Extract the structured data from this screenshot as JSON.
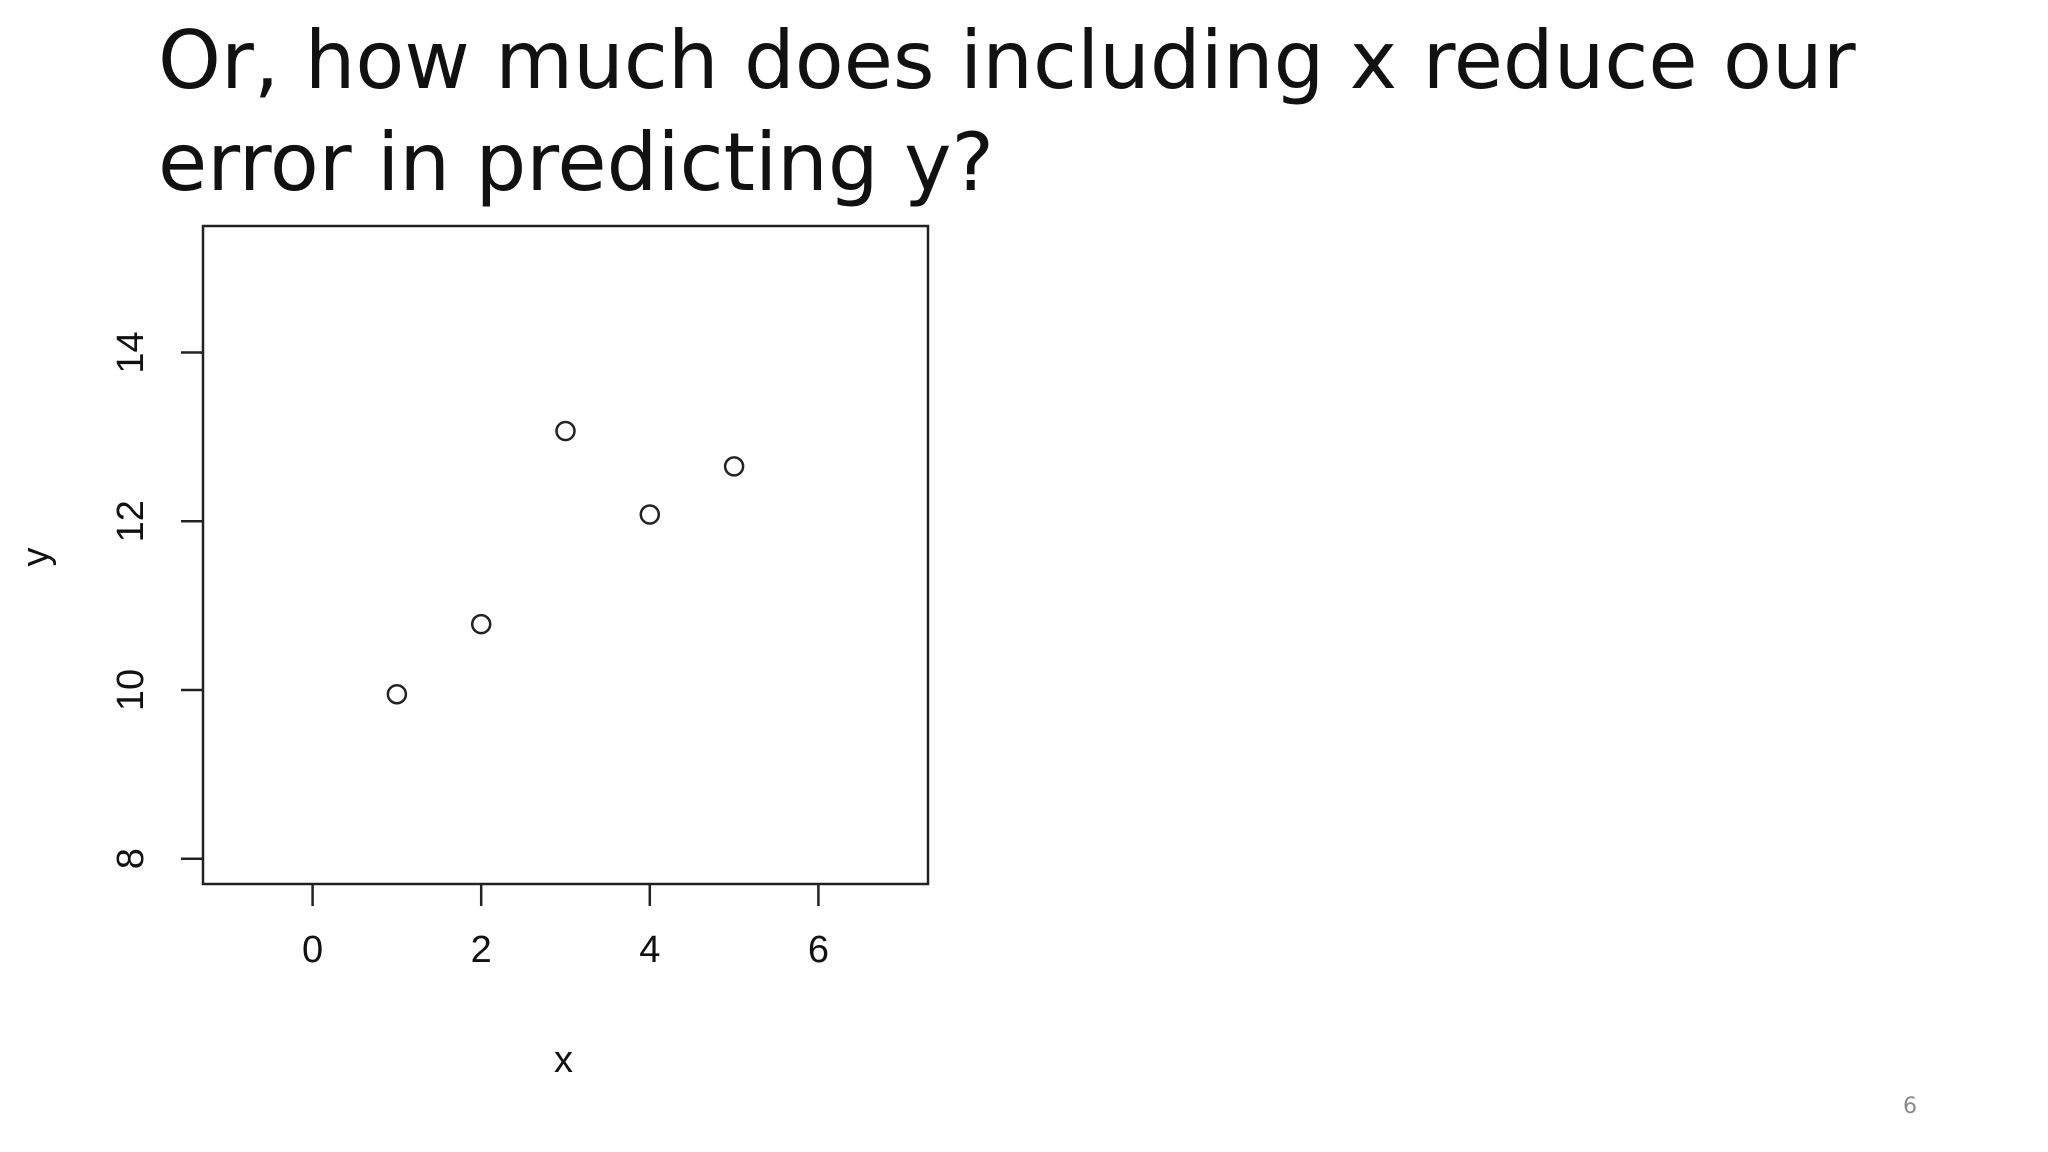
{
  "slide": {
    "title": "Or, how much does including x reduce our error in predicting y?",
    "page_number": "6"
  },
  "chart_data": {
    "type": "scatter",
    "title": "",
    "xlabel": "x",
    "ylabel": "y",
    "xlim": [
      -1.3,
      7.3
    ],
    "ylim": [
      7.7,
      15.5
    ],
    "x_ticks": [
      0,
      2,
      4,
      6
    ],
    "y_ticks": [
      8,
      10,
      12,
      14
    ],
    "x_tick_labels": [
      "0",
      "2",
      "4",
      "6"
    ],
    "y_tick_labels": [
      "8",
      "10",
      "12",
      "14"
    ],
    "grid": false,
    "legend": "none",
    "marker": "open-circle",
    "points": [
      {
        "x": 1,
        "y": 9.95
      },
      {
        "x": 2,
        "y": 10.78
      },
      {
        "x": 3,
        "y": 13.07
      },
      {
        "x": 4,
        "y": 12.08
      },
      {
        "x": 5,
        "y": 12.65
      }
    ]
  }
}
